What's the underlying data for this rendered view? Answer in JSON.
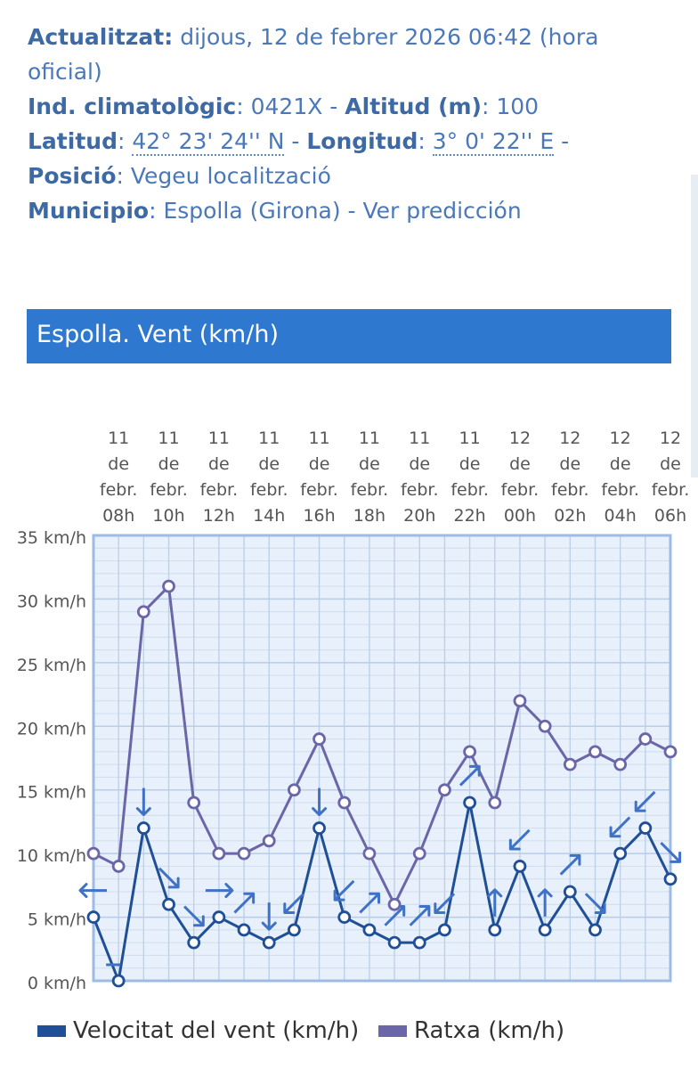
{
  "info": {
    "updated_label": "Actualitzat:",
    "updated_value": " dijous, 12 de febrer 2026 06:42 (hora",
    "updated_value_2": "oficial)",
    "ind_label": "Ind. climatològic",
    "ind_value": ": 0421X - ",
    "alt_label": "Altitud (m)",
    "alt_value": ": 100",
    "lat_label": "Latitud",
    "lat_sep": ": ",
    "lat_value": "42° 23' 24'' N",
    "lat_dash": " - ",
    "lon_label": "Longitud",
    "lon_sep": ": ",
    "lon_value": "3° 0' 22'' E",
    "lon_dash": " -",
    "pos_label": "Posició",
    "pos_value": ":   Vegeu localització",
    "mun_label": "Municipio",
    "mun_value": ":   Espolla (Girona) - Ver predicción"
  },
  "chart_header": "Espolla. Vent (km/h)",
  "colors": {
    "speed": "#1f4f96",
    "gust": "#6a66a8",
    "header": "#2f78d0",
    "plot_bg": "#e8f1fb",
    "arrow": "#3f72c6"
  },
  "chart_data": {
    "type": "line",
    "x_ticks": [
      [
        "11",
        "de",
        "febr.",
        "08h"
      ],
      [
        "11",
        "de",
        "febr.",
        "10h"
      ],
      [
        "11",
        "de",
        "febr.",
        "12h"
      ],
      [
        "11",
        "de",
        "febr.",
        "14h"
      ],
      [
        "11",
        "de",
        "febr.",
        "16h"
      ],
      [
        "11",
        "de",
        "febr.",
        "18h"
      ],
      [
        "11",
        "de",
        "febr.",
        "20h"
      ],
      [
        "11",
        "de",
        "febr.",
        "22h"
      ],
      [
        "12",
        "de",
        "febr.",
        "00h"
      ],
      [
        "12",
        "de",
        "febr.",
        "02h"
      ],
      [
        "12",
        "de",
        "febr.",
        "04h"
      ],
      [
        "12",
        "de",
        "febr.",
        "06h"
      ]
    ],
    "x": [
      "07h",
      "08h",
      "09h",
      "10h",
      "11h",
      "12h",
      "13h",
      "14h",
      "15h",
      "16h",
      "17h",
      "18h",
      "19h",
      "20h",
      "21h",
      "22h",
      "23h",
      "00h",
      "01h",
      "02h",
      "03h",
      "04h",
      "05h",
      "06h"
    ],
    "y_ticks": [
      "0 km/h",
      "5 km/h",
      "10 km/h",
      "15 km/h",
      "20 km/h",
      "25 km/h",
      "30 km/h",
      "35 km/h"
    ],
    "ylim": [
      0,
      35
    ],
    "series": [
      {
        "name": "Velocitat del vent (km/h)",
        "values": [
          5,
          0,
          12,
          6,
          3,
          5,
          4,
          3,
          4,
          12,
          5,
          4,
          3,
          3,
          4,
          14,
          4,
          9,
          4,
          7,
          4,
          10,
          12,
          8
        ]
      },
      {
        "name": "Ratxa (km/h)",
        "values": [
          10,
          9,
          29,
          31,
          14,
          10,
          10,
          11,
          15,
          19,
          14,
          10,
          6,
          10,
          15,
          18,
          14,
          22,
          20,
          17,
          18,
          17,
          19,
          18
        ]
      }
    ],
    "wind_direction_deg": [
      90,
      null,
      0,
      315,
      315,
      270,
      225,
      0,
      45,
      0,
      45,
      225,
      225,
      225,
      45,
      225,
      180,
      45,
      180,
      225,
      315,
      45,
      45,
      315
    ]
  }
}
